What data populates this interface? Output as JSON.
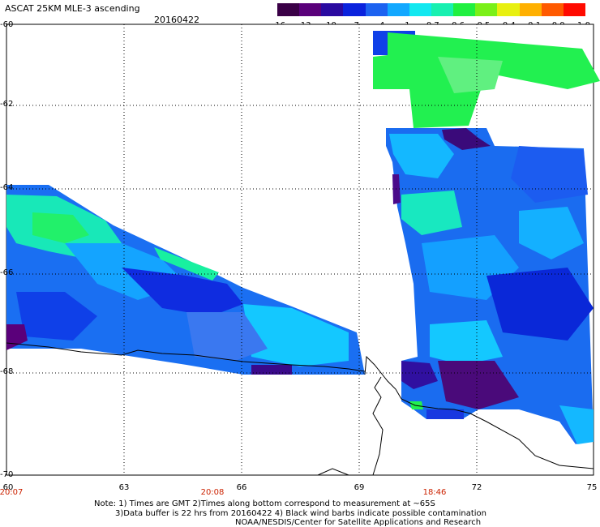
{
  "header": {
    "title": "ASCAT 25KM MLE-3 ascending",
    "date": "20160422"
  },
  "colorbar": {
    "colors": [
      "#3a0046",
      "#5a007a",
      "#2a0aa0",
      "#0a22dd",
      "#1c62f0",
      "#12a8ff",
      "#12e8f0",
      "#18f0b0",
      "#20f040",
      "#7af018",
      "#e8f010",
      "#ffb000",
      "#ff5a00",
      "#ff0a00"
    ],
    "labels": [
      "-16",
      "-13",
      "-10",
      "-7",
      "-4",
      "-1",
      "-0.7",
      "-0.6",
      "-0.5",
      "-0.4",
      "-0.1",
      "0.0",
      "1.0"
    ]
  },
  "axes": {
    "lat_labels": [
      "-60",
      "-62",
      "-64",
      "-66",
      "-68",
      "-70"
    ],
    "lon_labels": [
      "60",
      "63",
      "66",
      "69",
      "72",
      "75"
    ],
    "time_labels": [
      "20:07",
      "20:08",
      "18:46"
    ]
  },
  "notes": {
    "line1": "Note: 1) Times are GMT 2)Times along bottom correspond to measurement at ~65S",
    "line2": "3)Data buffer is 22 hrs from 20160422 4) Black wind barbs indicate possible contamination",
    "line3": "NOAA/NESDIS/Center for Satellite Applications and Research"
  }
}
